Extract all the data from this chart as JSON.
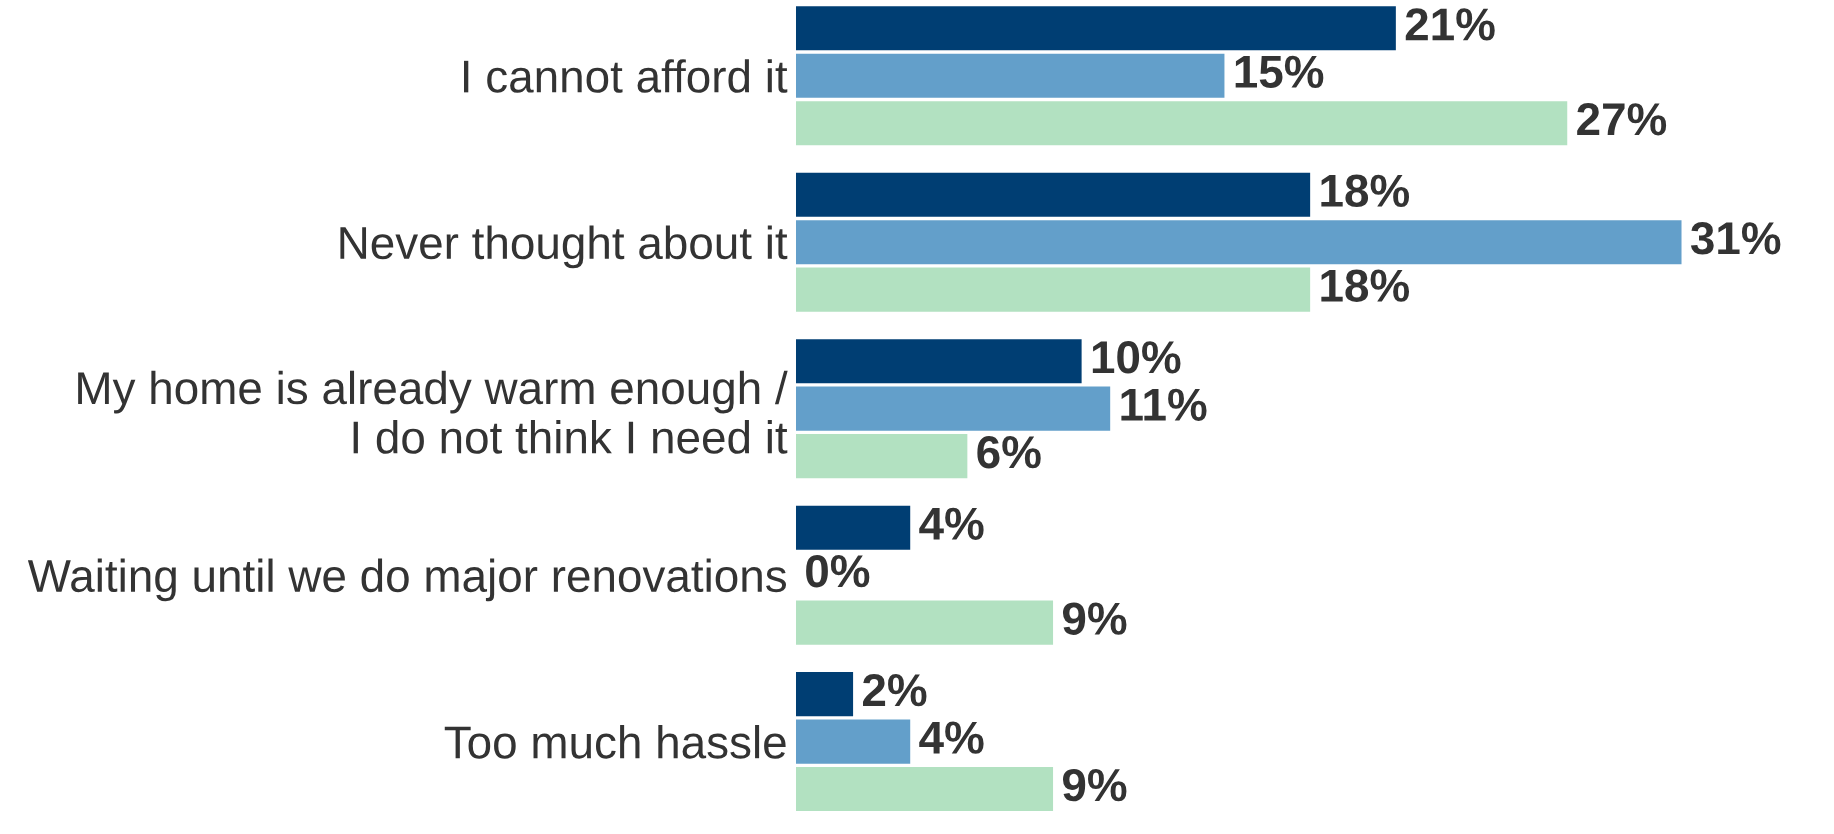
{
  "chart_data": {
    "type": "bar",
    "orientation": "horizontal",
    "categories": [
      "I cannot afford it",
      "Never thought about it",
      "My home is already warm enough /\nI do not think I need it",
      "Waiting until we do major renovations",
      "Too much hassle"
    ],
    "series": [
      {
        "color": "#003e73",
        "values": [
          21,
          18,
          10,
          4,
          2
        ],
        "value_labels": [
          "21%",
          "18%",
          "10%",
          "4%",
          "2%"
        ]
      },
      {
        "color": "#639fca",
        "values": [
          15,
          31,
          11,
          0,
          4
        ],
        "value_labels": [
          "15%",
          "31%",
          "11%",
          "0%",
          "4%"
        ]
      },
      {
        "color": "#b2e1c1",
        "values": [
          27,
          18,
          6,
          9,
          9
        ],
        "value_labels": [
          "27%",
          "18%",
          "6%",
          "9%",
          "9%"
        ]
      }
    ],
    "tick_labels": "y",
    "grid": false,
    "legend": false
  }
}
